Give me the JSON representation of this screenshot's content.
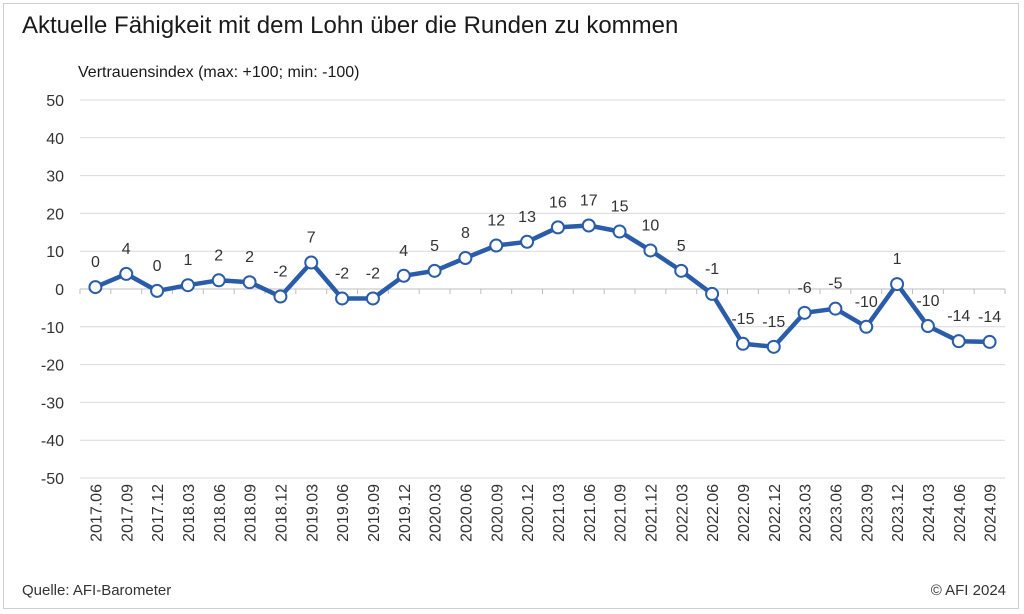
{
  "chart_data": {
    "type": "line",
    "title": "Aktuelle Fähigkeit mit dem Lohn über die Runden zu kommen",
    "ylabel": "Vertrauensindex (max: +100; min: -100)",
    "xlabel": "",
    "ylim": [
      -50,
      50
    ],
    "yticks": [
      50,
      40,
      30,
      20,
      10,
      0,
      -10,
      -20,
      -30,
      -40,
      -50
    ],
    "grid": true,
    "categories": [
      "2017.06",
      "2017.09",
      "2017.12",
      "2018.03",
      "2018.06",
      "2018.09",
      "2018.12",
      "2019.03",
      "2019.06",
      "2019.09",
      "2019.12",
      "2020.03",
      "2020.06",
      "2020.09",
      "2020.12",
      "2021.03",
      "2021.06",
      "2021.09",
      "2021.12",
      "2022.03",
      "2022.06",
      "2022.09",
      "2022.12",
      "2023.03",
      "2023.06",
      "2023.09",
      "2023.12",
      "2024.03",
      "2024.06",
      "2024.09"
    ],
    "series": [
      {
        "name": "Vertrauensindex",
        "color": "#2a5caa",
        "values": [
          0.5,
          4,
          -0.5,
          1,
          2.3,
          1.8,
          -2,
          7,
          -2.5,
          -2.5,
          3.5,
          4.8,
          8.2,
          11.5,
          12.5,
          16.3,
          16.8,
          15.2,
          10.2,
          4.8,
          -1.3,
          -14.5,
          -15.3,
          -6.3,
          -5.2,
          -10,
          1.3,
          -9.8,
          -13.8,
          -14
        ],
        "labels": [
          "0",
          "4",
          "0",
          "1",
          "2",
          "2",
          "-2",
          "7",
          "-2",
          "-2",
          "4",
          "5",
          "8",
          "12",
          "13",
          "16",
          "17",
          "15",
          "10",
          "5",
          "-1",
          "-15",
          "-15",
          "-6",
          "-5",
          "-10",
          "1",
          "-10",
          "-14",
          "-14"
        ]
      }
    ]
  },
  "footer": {
    "source": "Quelle: AFI-Barometer",
    "copyright": "© AFI 2024"
  }
}
